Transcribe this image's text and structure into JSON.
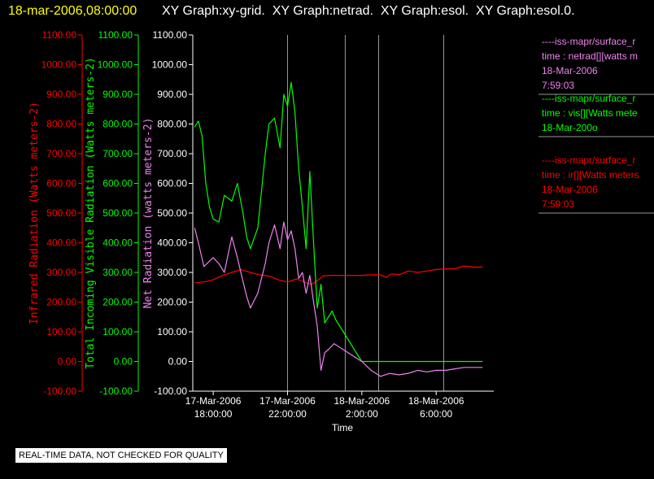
{
  "title_timestamp": "18-mar-2006,08:00:00",
  "title_rest": "XY Graph:xy-grid.  XY Graph:netrad.  XY Graph:esol.  XY Graph:esol.0.",
  "note": "REAL-TIME DATA, NOT CHECKED FOR QUALITY",
  "chart_data": {
    "type": "line",
    "xlabel": "Time",
    "x_ticks": [
      {
        "x": 18,
        "line1": "17-Mar-2006",
        "line2": "18:00:00"
      },
      {
        "x": 22,
        "line1": "17-Mar-2006",
        "line2": "22:00:00"
      },
      {
        "x": 26,
        "line1": "18-Mar-2006",
        "line2": "2:00:00"
      },
      {
        "x": 30,
        "line1": "18-Mar-2006",
        "line2": "6:00:00"
      }
    ],
    "xlim": [
      16.9,
      33.1
    ],
    "grid_x": [
      22,
      25.1,
      26.9,
      30.4
    ],
    "ylim": [
      -100,
      1100
    ],
    "y_ticks": [
      "1100.00",
      "1000.00",
      "900.00",
      "800.00",
      "700.00",
      "600.00",
      "500.00",
      "400.00",
      "300.00",
      "200.00",
      "100.00",
      "0.00",
      "-100.00"
    ],
    "axes": [
      {
        "label": "Infrared Radiation (Watts meters-2)",
        "color": "#ff0000"
      },
      {
        "label": "Total Incoming Visible Radiation (Watts meters-2)",
        "color": "#00ff00"
      },
      {
        "label": "Net Radiation (watts meters-2)",
        "color": "#ee82ee"
      }
    ],
    "series": [
      {
        "name": "Infrared Radiation",
        "color": "#ff0000",
        "x": [
          17.0,
          17.5,
          18.0,
          18.5,
          19.0,
          19.5,
          20.0,
          20.5,
          21.0,
          21.5,
          22.0,
          22.5,
          23.0,
          23.3,
          23.6,
          23.9,
          24.2,
          24.5,
          25.0,
          25.5,
          26.0,
          26.5,
          27.0,
          27.3,
          27.6,
          28.0,
          28.5,
          29.0,
          29.5,
          30.0,
          30.5,
          31.0,
          31.5,
          32.0,
          32.5
        ],
        "y": [
          265,
          268,
          275,
          290,
          300,
          310,
          300,
          292,
          288,
          275,
          268,
          278,
          265,
          260,
          272,
          288,
          290,
          290,
          290,
          290,
          290,
          292,
          292,
          283,
          295,
          292,
          305,
          300,
          305,
          310,
          312,
          312,
          322,
          318,
          318
        ]
      },
      {
        "name": "Total Incoming Visible Radiation",
        "color": "#00ff00",
        "x": [
          17.0,
          17.2,
          17.4,
          17.6,
          17.8,
          18.0,
          18.3,
          18.6,
          19.0,
          19.3,
          19.6,
          19.8,
          20.0,
          20.4,
          20.8,
          21.0,
          21.3,
          21.6,
          21.8,
          22.0,
          22.2,
          22.4,
          22.6,
          22.8,
          23.0,
          23.2,
          23.4,
          23.6,
          23.8,
          24.0,
          24.2,
          24.4,
          24.6,
          25.0,
          25.5,
          26.0,
          26.5,
          27.0,
          28.0,
          29.0,
          30.0,
          31.0,
          32.0,
          32.5
        ],
        "y": [
          790,
          810,
          760,
          600,
          520,
          480,
          470,
          560,
          540,
          600,
          500,
          420,
          380,
          450,
          700,
          800,
          820,
          720,
          900,
          860,
          940,
          840,
          650,
          520,
          380,
          640,
          400,
          180,
          260,
          130,
          150,
          170,
          140,
          100,
          50,
          0,
          0,
          0,
          0,
          0,
          0,
          0,
          0,
          0
        ]
      },
      {
        "name": "Net Radiation",
        "color": "#ee82ee",
        "x": [
          17.0,
          17.2,
          17.5,
          18.0,
          18.3,
          18.6,
          19.0,
          19.3,
          19.6,
          19.8,
          20.0,
          20.4,
          20.8,
          21.0,
          21.3,
          21.6,
          21.8,
          22.0,
          22.2,
          22.4,
          22.6,
          22.8,
          23.0,
          23.2,
          23.4,
          23.6,
          23.8,
          24.0,
          24.2,
          24.5,
          25.0,
          25.5,
          26.0,
          26.5,
          27.0,
          27.5,
          28.0,
          28.5,
          29.0,
          29.5,
          30.0,
          30.5,
          31.0,
          31.5,
          32.0,
          32.5
        ],
        "y": [
          450,
          400,
          320,
          350,
          330,
          300,
          420,
          350,
          270,
          220,
          180,
          230,
          330,
          400,
          460,
          380,
          470,
          410,
          440,
          380,
          280,
          300,
          230,
          290,
          200,
          120,
          -30,
          30,
          40,
          60,
          40,
          20,
          0,
          -30,
          -50,
          -40,
          -45,
          -40,
          -30,
          -35,
          -30,
          -30,
          -25,
          -20,
          -20,
          -20
        ]
      }
    ],
    "legend": {
      "placement": "right",
      "entries": [
        {
          "color": "#ee82ee",
          "lines": [
            "----iss-mapr/surface_r",
            "time : netrad[][watts m",
            "18-Mar-2006",
            "7:59:03"
          ]
        },
        {
          "color": "#00ff00",
          "lines": [
            "----iss-mapr/surface_r",
            "time : vis[][Watts mete",
            "18-Mar-200o"
          ]
        },
        {
          "color": "#ff0000",
          "lines": [
            "----iss-mapr/surface_r",
            "time : ir[][Watts meters",
            "18-Mar-2006",
            "7:59:03"
          ]
        }
      ]
    }
  }
}
